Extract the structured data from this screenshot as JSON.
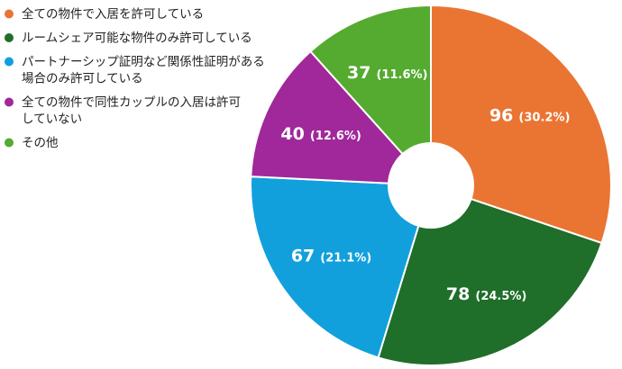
{
  "chart_data": {
    "type": "pie",
    "donut": true,
    "legend_position": "left",
    "slices": [
      {
        "label_lines": [
          "全ての物件で入居を許可している"
        ],
        "value": 96,
        "percent": "30.2%",
        "color": "#ea7533"
      },
      {
        "label_lines": [
          "ルームシェア可能な物件のみ許可している"
        ],
        "value": 78,
        "percent": "24.5%",
        "color": "#1f6e2a"
      },
      {
        "label_lines": [
          "パートナーシップ証明など関係性証明がある",
          "場合のみ許可している"
        ],
        "value": 67,
        "percent": "21.1%",
        "color": "#11a0dc"
      },
      {
        "label_lines": [
          "全ての物件で同性カップルの入居は許可",
          "していない"
        ],
        "value": 40,
        "percent": "12.6%",
        "color": "#a0289a"
      },
      {
        "label_lines": [
          "その他"
        ],
        "value": 37,
        "percent": "11.6%",
        "color": "#54ab2f"
      }
    ]
  }
}
